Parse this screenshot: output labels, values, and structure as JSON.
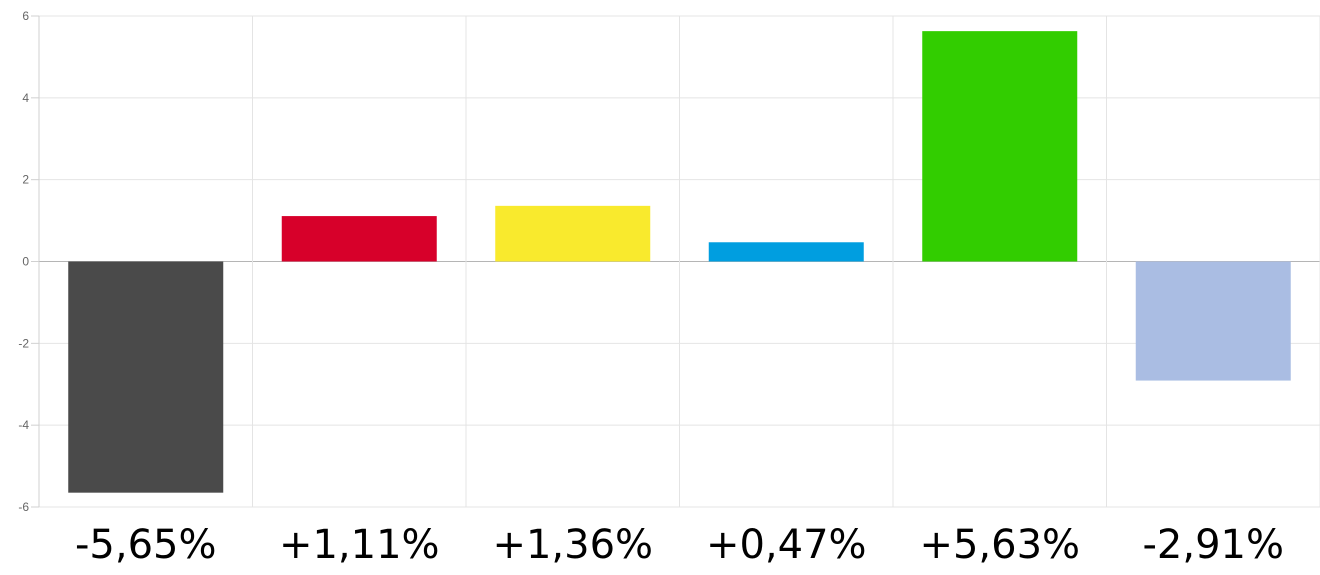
{
  "chart_data": {
    "type": "bar",
    "title": "",
    "xlabel": "",
    "ylabel": "",
    "ylim": [
      -6,
      6
    ],
    "yticks": [
      6,
      4,
      2,
      0,
      -2,
      -4,
      -6
    ],
    "ytick_labels": [
      "6",
      "4",
      "2",
      "0",
      "-2",
      "-4",
      "-6"
    ],
    "grid": true,
    "legend": "none",
    "values": [
      -5.65,
      1.11,
      1.36,
      0.47,
      5.63,
      -2.91
    ],
    "data_labels": [
      "-5,65%",
      "+1,11%",
      "+1,36%",
      "+0,47%",
      "+5,63%",
      "-2,91%"
    ],
    "colors": [
      "#4a4a4a",
      "#d7002a",
      "#f9ea2d",
      "#009ee0",
      "#32cd00",
      "#aabde3"
    ]
  }
}
